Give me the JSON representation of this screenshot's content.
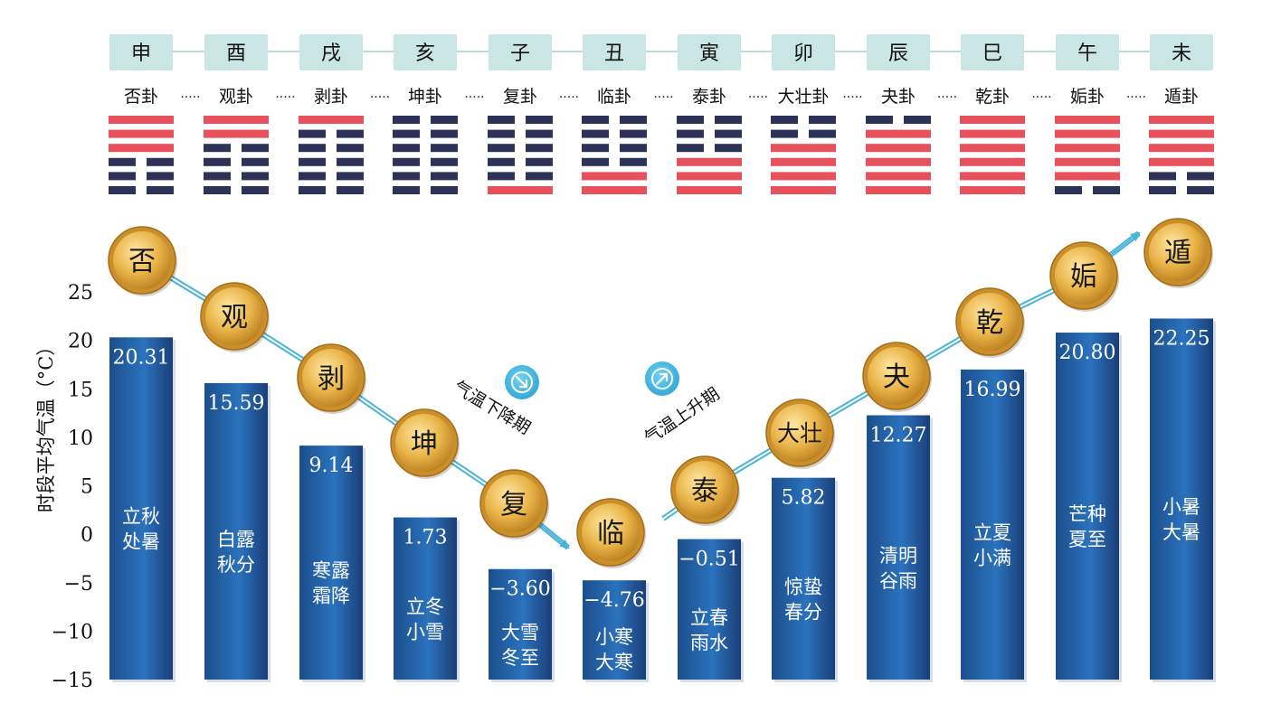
{
  "branches": [
    "申",
    "酉",
    "戌",
    "亥",
    "子",
    "丑",
    "寅",
    "卯",
    "辰",
    "巳",
    "午",
    "未"
  ],
  "hexagram_names": [
    "否卦",
    "观卦",
    "剥卦",
    "坤卦",
    "复卦",
    "临卦",
    "泰卦",
    "大壮卦",
    "夬卦",
    "乾卦",
    "姤卦",
    "遁卦"
  ],
  "hexagram_separator": "·····",
  "hexagram_lines_top_to_bottom": [
    [
      "yang",
      "yang",
      "yang",
      "yin",
      "yin",
      "yin"
    ],
    [
      "yang",
      "yang",
      "yin",
      "yin",
      "yin",
      "yin"
    ],
    [
      "yang",
      "yin",
      "yin",
      "yin",
      "yin",
      "yin"
    ],
    [
      "yin",
      "yin",
      "yin",
      "yin",
      "yin",
      "yin"
    ],
    [
      "yin",
      "yin",
      "yin",
      "yin",
      "yin",
      "yang"
    ],
    [
      "yin",
      "yin",
      "yin",
      "yin",
      "yang",
      "yang"
    ],
    [
      "yin",
      "yin",
      "yin",
      "yang",
      "yang",
      "yang"
    ],
    [
      "yin",
      "yin",
      "yang",
      "yang",
      "yang",
      "yang"
    ],
    [
      "yin",
      "yang",
      "yang",
      "yang",
      "yang",
      "yang"
    ],
    [
      "yang",
      "yang",
      "yang",
      "yang",
      "yang",
      "yang"
    ],
    [
      "yang",
      "yang",
      "yang",
      "yang",
      "yang",
      "yin"
    ],
    [
      "yang",
      "yang",
      "yang",
      "yang",
      "yin",
      "yin"
    ]
  ],
  "coins": [
    "否",
    "观",
    "剥",
    "坤",
    "复",
    "临",
    "泰",
    "大壮",
    "夬",
    "乾",
    "姤",
    "遁"
  ],
  "trend": {
    "falling_label": "气温下降期",
    "rising_label": "气温上升期",
    "falling_icon": "arrow-down-right-icon",
    "rising_icon": "arrow-up-right-icon"
  },
  "chart_data": {
    "type": "bar",
    "title": "",
    "xlabel": "",
    "ylabel": "时段平均气温（°C）",
    "ylim": [
      -15,
      25
    ],
    "yticks": [
      "25",
      "20",
      "15",
      "10",
      "5",
      "0",
      "−5",
      "−10",
      "−15"
    ],
    "categories": [
      "立秋\n处暑",
      "白露\n秋分",
      "寒露\n霜降",
      "立冬\n小雪",
      "大雪\n冬至",
      "小寒\n大寒",
      "立春\n雨水",
      "惊蛰\n春分",
      "清明\n谷雨",
      "立夏\n小满",
      "芒种\n夏至",
      "小暑\n大暑"
    ],
    "values": [
      20.31,
      15.59,
      9.14,
      1.73,
      -3.6,
      -4.76,
      -0.51,
      5.82,
      12.27,
      16.99,
      20.8,
      22.25
    ],
    "value_labels": [
      "20.31",
      "15.59",
      "9.14",
      "1.73",
      "−3.60",
      "−4.76",
      "−0.51",
      "5.82",
      "12.27",
      "16.99",
      "20.80",
      "22.25"
    ],
    "grid": false,
    "legend": "none"
  },
  "colors": {
    "bar_dark": "#1b4f8c",
    "bar_light": "#2f7bc6",
    "yang_line": "#e8505b",
    "yin_line": "#2c3258",
    "branch_box": "#c9e6e4",
    "coin_gold": "#e3a83a",
    "trend_line": "#49b4d8"
  }
}
